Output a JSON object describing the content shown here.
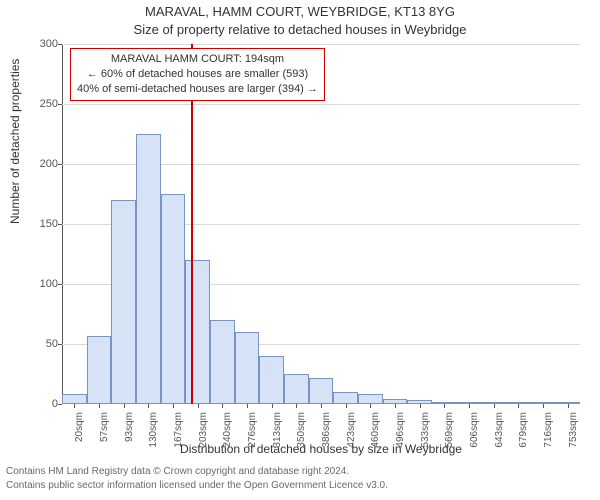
{
  "title_main": "MARAVAL, HAMM COURT, WEYBRIDGE, KT13 8YG",
  "title_sub": "Size of property relative to detached houses in Weybridge",
  "ylabel": "Number of detached properties",
  "xlabel": "Distribution of detached houses by size in Weybridge",
  "footer1": "Contains HM Land Registry data © Crown copyright and database right 2024.",
  "footer2": "Contains public sector information licensed under the Open Government Licence v3.0.",
  "annotation": {
    "line1": "MARAVAL HAMM COURT: 194sqm",
    "line2": "← 60% of detached houses are smaller (593)",
    "line3": "40% of semi-detached houses are larger (394) →",
    "border_color": "#cc0000"
  },
  "chart": {
    "type": "histogram",
    "ylim": [
      0,
      300
    ],
    "ytick_step": 50,
    "yticks": [
      0,
      50,
      100,
      150,
      200,
      250,
      300
    ],
    "grid_color": "#d9d9d9",
    "axis_color": "#555555",
    "background_color": "#ffffff",
    "bar_fill": "#d6e2f5",
    "bar_border": "#7a94c2",
    "bar_width_ratio": 1.0,
    "categories": [
      "20sqm",
      "57sqm",
      "93sqm",
      "130sqm",
      "167sqm",
      "203sqm",
      "240sqm",
      "276sqm",
      "313sqm",
      "350sqm",
      "386sqm",
      "423sqm",
      "460sqm",
      "496sqm",
      "533sqm",
      "569sqm",
      "606sqm",
      "643sqm",
      "679sqm",
      "716sqm",
      "753sqm"
    ],
    "values": [
      8,
      57,
      170,
      225,
      175,
      120,
      70,
      60,
      40,
      25,
      22,
      10,
      8,
      4,
      3,
      2,
      1,
      1,
      1,
      1,
      1
    ],
    "reference_line": {
      "x_value_sqm": 194,
      "color": "#cc0000",
      "width": 2
    },
    "label_fontsize": 12,
    "tick_fontsize": 11
  }
}
